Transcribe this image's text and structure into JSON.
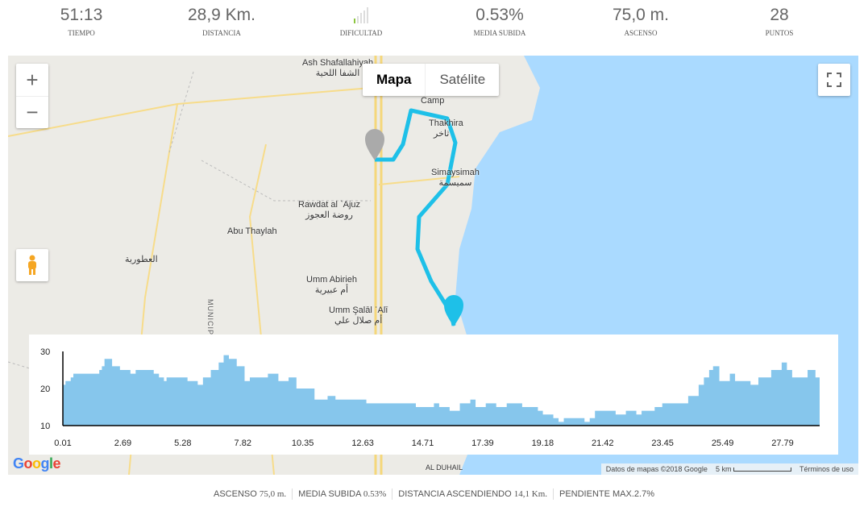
{
  "stats": [
    {
      "value": "51:13",
      "label": "TIEMPO"
    },
    {
      "value": "28,9 Km.",
      "label": "DISTANCIA"
    },
    {
      "value": "",
      "label": "DIFICULTAD",
      "difficulty_level": 1,
      "difficulty_max": 5
    },
    {
      "value": "0.53%",
      "label": "MEDIA SUBIDA"
    },
    {
      "value": "75,0 m.",
      "label": "ASCENSO"
    },
    {
      "value": "28",
      "label": "PUNTOS"
    }
  ],
  "colors": {
    "route": "#1ec0e8",
    "difficulty_on": "#8cc63f",
    "sea": "#aadaff",
    "profile_fill": "#86c6ec"
  },
  "map": {
    "type_buttons": [
      "Mapa",
      "Satélite"
    ],
    "active_type": "Mapa",
    "zoom_in": "+",
    "zoom_out": "−",
    "labels": [
      "Ash Shafallahiyah",
      "الشفا اللحية",
      "Camp",
      "Thakhira",
      "ثاخر",
      "Simaysimah",
      "سميسمة",
      "Rawdat al `Ajuz",
      "روضة العجوز",
      "Abu Thaylah",
      "العطورية",
      "Umm Abirieh",
      "أم عبيرية",
      "Umm Şalāl ʿAlī",
      "أم صلال علي",
      "AL DUHAIL",
      "MUNICIP"
    ],
    "attribution": "Datos de mapas ©2018 Google",
    "scale": "5 km",
    "terms": "Términos de uso",
    "logo": "Google"
  },
  "chart_data": {
    "type": "area",
    "ylim": [
      10,
      30
    ],
    "yticks": [
      "30",
      "20",
      "10"
    ],
    "xticks": [
      "0.01",
      "2.69",
      "5.28",
      "7.82",
      "10.35",
      "12.63",
      "14.71",
      "17.39",
      "19.18",
      "21.42",
      "23.45",
      "25.49",
      "27.79"
    ],
    "x": [
      0,
      0.1,
      0.3,
      0.4,
      1.29,
      1.39,
      1.49,
      1.59,
      1.72,
      1.88,
      2.18,
      2.58,
      2.78,
      3.47,
      3.67,
      3.86,
      3.96,
      4.76,
      5.15,
      5.35,
      5.65,
      5.95,
      6.14,
      6.34,
      6.64,
      6.94,
      7.14,
      7.83,
      8.23,
      8.62,
      8.92,
      9.32,
      9.61,
      10.11,
      10.41,
      11.59,
      13.48,
      14.17,
      14.37,
      14.77,
      15.16,
      15.56,
      15.76,
      16.15,
      16.55,
      16.95,
      17.54,
      18.14,
      18.33,
      18.73,
      18.93,
      19.13,
      19.92,
      20.12,
      20.32,
      21.11,
      21.5,
      21.9,
      22.1,
      22.6,
      22.89,
      23.68,
      23.88,
      24.28,
      24.48,
      24.68,
      24.83,
      25.07,
      25.47,
      25.67,
      26.26,
      26.56,
      27.05,
      27.45,
      27.65,
      27.85,
      28.44,
      28.74,
      28.9
    ],
    "y": [
      21,
      22,
      23,
      24,
      24,
      25,
      26,
      28,
      28,
      26,
      25,
      24,
      25,
      24,
      23,
      22,
      23,
      22,
      21,
      23,
      25,
      27,
      29,
      28,
      26,
      22,
      23,
      24,
      22,
      23,
      20,
      20,
      17,
      18,
      17,
      16,
      15,
      16,
      15,
      14,
      16,
      17,
      15,
      16,
      15,
      16,
      15,
      14,
      13,
      12,
      11,
      12,
      11,
      12,
      14,
      13,
      14,
      13,
      14,
      15,
      16,
      16,
      18,
      21,
      23,
      25,
      26,
      22,
      24,
      22,
      21,
      23,
      25,
      27,
      25,
      23,
      25,
      23,
      20
    ]
  },
  "summary": [
    {
      "label": "ASCENSO",
      "value": "75,0 m."
    },
    {
      "label": "MEDIA SUBIDA",
      "value": "0.53%"
    },
    {
      "label": "DISTANCIA ASCENDIENDO",
      "value": "14,1 Km."
    },
    {
      "label": "PENDIENTE MAX.",
      "value": "2.7%"
    }
  ]
}
